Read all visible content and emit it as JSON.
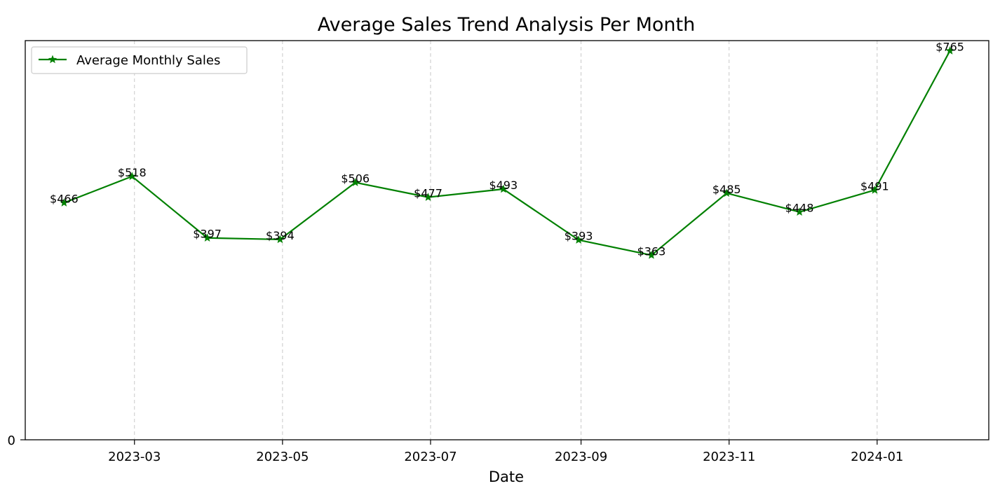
{
  "chart_data": {
    "type": "line",
    "title": "Average Sales Trend Analysis Per Month",
    "xlabel": "Date",
    "ylabel": "",
    "x": [
      "2023-01-31",
      "2023-02-28",
      "2023-03-31",
      "2023-04-30",
      "2023-05-31",
      "2023-06-30",
      "2023-07-31",
      "2023-08-31",
      "2023-09-30",
      "2023-10-31",
      "2023-11-30",
      "2023-12-31",
      "2024-01-31"
    ],
    "series": [
      {
        "name": "Average Monthly Sales",
        "values": [
          466,
          518,
          397,
          394,
          506,
          477,
          493,
          393,
          363,
          485,
          448,
          491,
          765
        ],
        "labels": [
          "$466",
          "$518",
          "$397",
          "$394",
          "$506",
          "$477",
          "$493",
          "$393",
          "$363",
          "$485",
          "$448",
          "$491",
          "$765"
        ],
        "color": "#008000",
        "marker": "star"
      }
    ],
    "x_ticks": [
      "2023-03",
      "2023-05",
      "2023-07",
      "2023-09",
      "2023-11",
      "2024-01"
    ],
    "x_tick_dates": [
      "2023-03-01",
      "2023-05-01",
      "2023-07-01",
      "2023-09-01",
      "2023-11-01",
      "2024-01-01"
    ],
    "y_ticks": [
      "0"
    ],
    "y_tick_values": [
      0
    ],
    "xlim": [
      "2023-01-15",
      "2024-02-16"
    ],
    "ylim": [
      0,
      785
    ],
    "grid": "x-dashed",
    "legend_position": "upper-left"
  }
}
